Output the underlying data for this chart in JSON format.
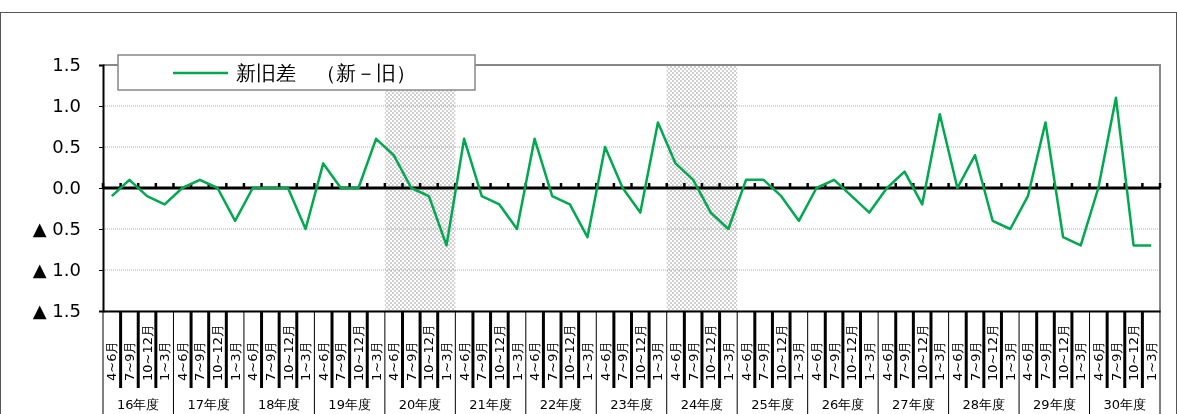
{
  "chart_data": {
    "type": "line",
    "categories": [
      "4~6月",
      "7~9月",
      "10~12月",
      "1~3月",
      "4~6月",
      "7~9月",
      "10~12月",
      "1~3月",
      "4~6月",
      "7~9月",
      "10~12月",
      "1~3月",
      "4~6月",
      "7~9月",
      "10~12月",
      "1~3月",
      "4~6月",
      "7~9月",
      "10~12月",
      "1~3月",
      "4~6月",
      "7~9月",
      "10~12月",
      "1~3月",
      "4~6月",
      "7~9月",
      "10~12月",
      "1~3月",
      "4~6月",
      "7~9月",
      "10~12月",
      "1~3月",
      "4~6月",
      "7~9月",
      "10~12月",
      "1~3月",
      "4~6月",
      "7~9月",
      "10~12月",
      "1~3月",
      "4~6月",
      "7~9月",
      "10~12月",
      "1~3月",
      "4~6月",
      "7~9月",
      "10~12月",
      "1~3月",
      "4~6月",
      "7~9月",
      "10~12月",
      "1~3月",
      "4~6月",
      "7~9月",
      "10~12月",
      "1~3月",
      "4~6月",
      "7~9月",
      "10~12月",
      "1~3月"
    ],
    "series": [
      {
        "name": "新旧差　（新－旧）",
        "color": "#00a84f",
        "values": [
          -0.1,
          0.1,
          -0.1,
          -0.2,
          0.0,
          0.1,
          0.0,
          -0.4,
          0.0,
          0.0,
          0.0,
          -0.5,
          0.3,
          0.0,
          0.0,
          0.6,
          0.4,
          0.0,
          -0.1,
          -0.7,
          0.6,
          -0.1,
          -0.2,
          -0.5,
          0.6,
          -0.1,
          -0.2,
          -0.6,
          0.5,
          0.0,
          -0.3,
          0.8,
          0.3,
          0.1,
          -0.3,
          -0.5,
          0.1,
          0.1,
          -0.1,
          -0.4,
          0.0,
          0.1,
          -0.1,
          -0.3,
          0.0,
          0.2,
          -0.2,
          0.9,
          0.0,
          0.4,
          -0.4,
          -0.5,
          -0.1,
          0.8,
          -0.6,
          -0.7,
          0.0,
          1.1,
          -0.7,
          -0.7
        ]
      }
    ],
    "ylim": [
      -1.5,
      1.5
    ],
    "yticks": [
      {
        "value": -1.5,
        "label": "▲ 1.5"
      },
      {
        "value": -1.0,
        "label": "▲ 1.0"
      },
      {
        "value": -0.5,
        "label": "▲ 0.5"
      },
      {
        "value": 0,
        "label": "0.0"
      },
      {
        "value": 0.5,
        "label": "0.5"
      },
      {
        "value": 1.0,
        "label": "1.0"
      },
      {
        "value": 1.5,
        "label": "1.5"
      }
    ],
    "annotations": [
      "16年度",
      "17年度",
      "18年度",
      "19年度",
      "20年度",
      "21年度",
      "22年度",
      "23年度",
      "24年度",
      "25年度",
      "26年度",
      "27年度",
      "28年度",
      "29年度",
      "30年度"
    ],
    "grid": "y",
    "legend": "top left",
    "marker": "none",
    "line_style": "solid"
  }
}
